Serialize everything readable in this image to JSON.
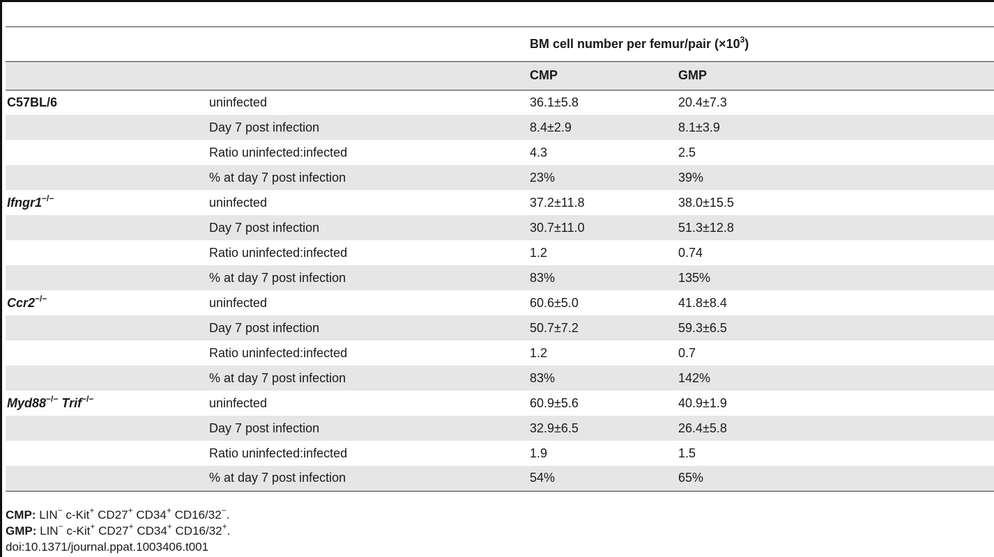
{
  "header": {
    "span_title": "BM cell number per femur/pair (×10",
    "span_title_sup": "3",
    "span_title_end": ")",
    "col_cmp": "CMP",
    "col_gmp": "GMP"
  },
  "groups": [
    {
      "strain": "C57BL/6",
      "strain_sup": "",
      "strain2": "",
      "strain2_sup": "",
      "rows": [
        {
          "label": "uninfected",
          "cmp": "36.1±5.8",
          "gmp": "20.4±7.3"
        },
        {
          "label": "Day 7 post infection",
          "cmp": "8.4±2.9",
          "gmp": "8.1±3.9"
        },
        {
          "label": "Ratio uninfected:infected",
          "cmp": "4.3",
          "gmp": "2.5"
        },
        {
          "label": "% at day 7 post infection",
          "cmp": "23%",
          "gmp": "39%"
        }
      ]
    },
    {
      "strain": "Ifngr1",
      "strain_sup": "−/−",
      "strain2": "",
      "strain2_sup": "",
      "rows": [
        {
          "label": "uninfected",
          "cmp": "37.2±11.8",
          "gmp": "38.0±15.5"
        },
        {
          "label": "Day 7 post infection",
          "cmp": "30.7±11.0",
          "gmp": "51.3±12.8"
        },
        {
          "label": "Ratio uninfected:infected",
          "cmp": "1.2",
          "gmp": "0.74"
        },
        {
          "label": "% at day 7 post infection",
          "cmp": "83%",
          "gmp": "135%"
        }
      ]
    },
    {
      "strain": "Ccr2",
      "strain_sup": "−/−",
      "strain2": "",
      "strain2_sup": "",
      "rows": [
        {
          "label": "uninfected",
          "cmp": "60.6±5.0",
          "gmp": "41.8±8.4"
        },
        {
          "label": "Day 7 post infection",
          "cmp": "50.7±7.2",
          "gmp": "59.3±6.5"
        },
        {
          "label": "Ratio uninfected:infected",
          "cmp": "1.2",
          "gmp": "0.7"
        },
        {
          "label": "% at day 7 post infection",
          "cmp": "83%",
          "gmp": "142%"
        }
      ]
    },
    {
      "strain": "Myd88",
      "strain_sup": "−/−",
      "strain2": "Trif",
      "strain2_sup": "−/−",
      "rows": [
        {
          "label": "uninfected",
          "cmp": "60.9±5.6",
          "gmp": "40.9±1.9"
        },
        {
          "label": "Day 7 post infection",
          "cmp": "32.9±6.5",
          "gmp": "26.4±5.8"
        },
        {
          "label": "Ratio uninfected:infected",
          "cmp": "1.9",
          "gmp": "1.5"
        },
        {
          "label": "% at day 7 post infection",
          "cmp": "54%",
          "gmp": "65%"
        }
      ]
    }
  ],
  "footnotes": {
    "cmp_label": "CMP:",
    "cmp_text": "LIN",
    "cmp_lin_sup": "−",
    "cmp_kit": "c-Kit",
    "cmp_kit_sup": "+",
    "cmp_cd27": "CD27",
    "cmp_cd27_sup": "+",
    "cmp_cd34": "CD34",
    "cmp_cd34_sup": "+",
    "cmp_cd16": "CD16/32",
    "cmp_cd16_sup": "−",
    "gmp_label": "GMP:",
    "gmp_text": "LIN",
    "gmp_lin_sup": "−",
    "gmp_kit": "c-Kit",
    "gmp_kit_sup": "+",
    "gmp_cd27": "CD27",
    "gmp_cd27_sup": "+",
    "gmp_cd34": "CD34",
    "gmp_cd34_sup": "+",
    "gmp_cd16": "CD16/32",
    "gmp_cd16_sup": "+",
    "period": ".",
    "doi": "doi:10.1371/journal.ppat.1003406.t001"
  }
}
